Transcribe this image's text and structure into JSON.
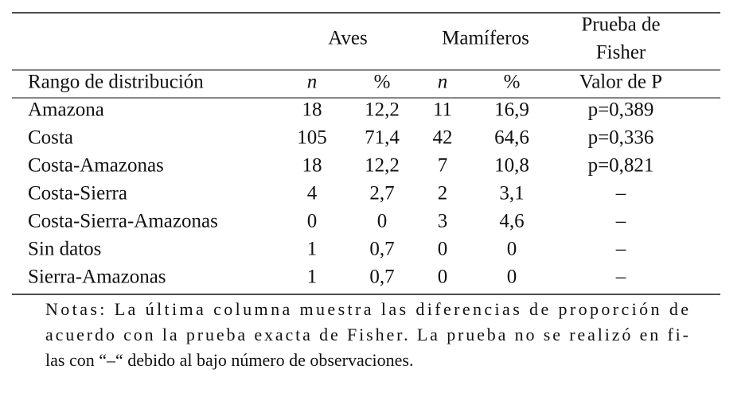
{
  "table": {
    "group_headers": {
      "aves": "Aves",
      "mamiferos": "Mamíferos",
      "fisher": [
        "Prueba de",
        "Fisher"
      ]
    },
    "columns": [
      "Rango de distribución",
      "n",
      "%",
      "n",
      "%",
      "Valor de P"
    ],
    "rows": [
      [
        "Amazona",
        "18",
        "12,2",
        "11",
        "16,9",
        "p=0,389"
      ],
      [
        "Costa",
        "105",
        "71,4",
        "42",
        "64,6",
        "p=0,336"
      ],
      [
        "Costa-Amazonas",
        "18",
        "12,2",
        "7",
        "10,8",
        "p=0,821"
      ],
      [
        "Costa-Sierra",
        "4",
        "2,7",
        "2",
        "3,1",
        "–"
      ],
      [
        "Costa-Sierra-Amazonas",
        "0",
        "0",
        "3",
        "4,6",
        "–"
      ],
      [
        "Sin datos",
        "1",
        "0,7",
        "0",
        "0",
        "–"
      ],
      [
        "Sierra-Amazonas",
        "1",
        "0,7",
        "0",
        "0",
        "–"
      ]
    ],
    "notes": [
      "Notas: La última columna muestra las diferencias de proporción de",
      "acuerdo con la prueba exacta de Fisher. La prueba no se realizó en fi-",
      "las con “–“ debido al bajo número de observaciones."
    ]
  }
}
